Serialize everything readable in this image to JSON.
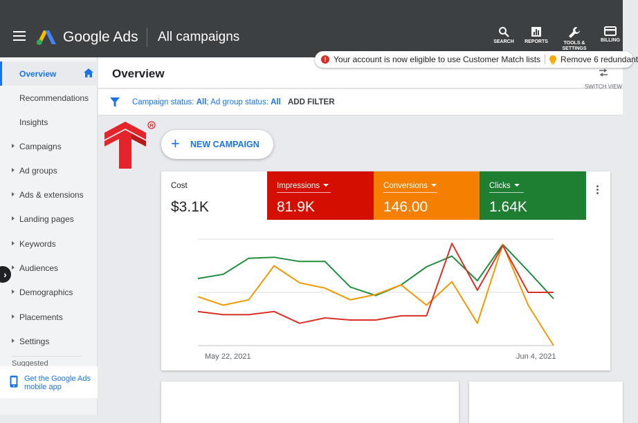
{
  "header": {
    "product_name": "Google Ads",
    "page_heading": "All campaigns",
    "tools": [
      {
        "label": "SEARCH",
        "icon": "search-icon"
      },
      {
        "label": "REPORTS",
        "icon": "reports-icon"
      },
      {
        "label": "TOOLS & SETTINGS",
        "icon": "wrench-icon"
      },
      {
        "label": "BILLING",
        "icon": "billing-icon"
      }
    ]
  },
  "notice": {
    "message": "Your account is now eligible to use Customer Match lists",
    "secondary": "Remove 6 redundant"
  },
  "sidebar": {
    "items": [
      {
        "label": "Overview"
      },
      {
        "label": "Recommendations"
      },
      {
        "label": "Insights"
      },
      {
        "label": "Campaigns"
      },
      {
        "label": "Ad groups"
      },
      {
        "label": "Ads & extensions"
      },
      {
        "label": "Landing pages"
      },
      {
        "label": "Keywords"
      },
      {
        "label": "Audiences"
      },
      {
        "label": "Demographics"
      },
      {
        "label": "Placements"
      },
      {
        "label": "Settings"
      }
    ],
    "suggested": "Suggested",
    "app_promo": "Get the Google Ads mobile app"
  },
  "main": {
    "title": "Overview",
    "switch_view": "SWITCH VIEW",
    "filter": {
      "campaign_status_label": "Campaign status: ",
      "campaign_status_value": "All",
      "ad_group_status_label": "; Ad group status: ",
      "ad_group_status_value": "All",
      "add_filter": "ADD FILTER"
    },
    "new_campaign": "NEW CAMPAIGN"
  },
  "metrics": [
    {
      "name": "Cost",
      "value": "$3.1K",
      "color": "#ffffff"
    },
    {
      "name": "Impressions",
      "value": "81.9K",
      "color": "#d50f00"
    },
    {
      "name": "Conversions",
      "value": "146.00",
      "color": "#f57f00"
    },
    {
      "name": "Clicks",
      "value": "1.64K",
      "color": "#1e7f33"
    }
  ],
  "colors": {
    "accent": "#1a73e8",
    "topbar": "#3c4043",
    "impressions": "#d93025",
    "conversions": "#f29900",
    "clicks": "#1e8e3e"
  },
  "chart_data": {
    "type": "line",
    "x_start_label": "May 22, 2021",
    "x_end_label": "Jun 4, 2021",
    "x": [
      0,
      1,
      2,
      3,
      4,
      5,
      6,
      7,
      8,
      9,
      10,
      11,
      12,
      13,
      14
    ],
    "ylim": [
      0,
      100
    ],
    "grid": true,
    "series": [
      {
        "name": "Clicks",
        "color": "#1e8e3e",
        "values": [
          63,
          67,
          82,
          83,
          79,
          79,
          55,
          47,
          57,
          74,
          84,
          61,
          95,
          70,
          44
        ]
      },
      {
        "name": "Conversions",
        "color": "#f29900",
        "values": [
          46,
          38,
          43,
          75,
          59,
          54,
          43,
          48,
          57,
          38,
          60,
          21,
          95,
          38,
          0
        ]
      },
      {
        "name": "Impressions",
        "color": "#d93025",
        "values": [
          32,
          29,
          29,
          32,
          21,
          26,
          24,
          24,
          28,
          28,
          96,
          52,
          94,
          50,
          50
        ]
      }
    ]
  }
}
